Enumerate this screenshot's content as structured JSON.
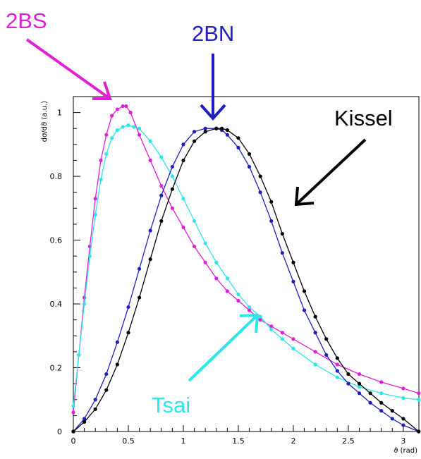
{
  "chart_data": {
    "type": "line",
    "title": "",
    "xlabel": "ϑ (rad)",
    "ylabel": "dσ/dϑ (a.u.)",
    "xlim": [
      0,
      3.1416
    ],
    "ylim": [
      0,
      1.05
    ],
    "xticks": [
      "0",
      "0.5",
      "1",
      "1.5",
      "2",
      "2.5",
      "3"
    ],
    "xtick_values": [
      0,
      0.5,
      1,
      1.5,
      2,
      2.5,
      3
    ],
    "yticks": [
      "0",
      "0.2",
      "0.4",
      "0.6",
      "0.8",
      "1"
    ],
    "ytick_values": [
      0,
      0.2,
      0.4,
      0.6,
      0.8,
      1
    ],
    "grid": false,
    "legend": "none",
    "series": [
      {
        "name": "2BS",
        "color": "#e020d8",
        "x": [
          0.0,
          0.05,
          0.1,
          0.15,
          0.2,
          0.25,
          0.3,
          0.35,
          0.4,
          0.45,
          0.48,
          0.52,
          0.6,
          0.7,
          0.8,
          0.9,
          1.0,
          1.1,
          1.2,
          1.3,
          1.4,
          1.5,
          1.6,
          1.7,
          1.8,
          1.9,
          2.0,
          2.2,
          2.4,
          2.6,
          2.8,
          3.0,
          3.14
        ],
        "y": [
          0.06,
          0.24,
          0.42,
          0.58,
          0.73,
          0.85,
          0.93,
          0.99,
          1.01,
          1.02,
          1.02,
          1.0,
          0.93,
          0.85,
          0.77,
          0.7,
          0.64,
          0.58,
          0.53,
          0.48,
          0.44,
          0.41,
          0.38,
          0.35,
          0.33,
          0.31,
          0.29,
          0.25,
          0.21,
          0.18,
          0.155,
          0.135,
          0.12
        ]
      },
      {
        "name": "Tsai",
        "color": "#2ee6ea",
        "x": [
          0.0,
          0.05,
          0.1,
          0.15,
          0.2,
          0.25,
          0.3,
          0.35,
          0.4,
          0.45,
          0.5,
          0.55,
          0.6,
          0.7,
          0.8,
          0.9,
          1.0,
          1.1,
          1.2,
          1.3,
          1.4,
          1.5,
          1.6,
          1.7,
          1.8,
          1.9,
          2.0,
          2.2,
          2.4,
          2.6,
          2.8,
          3.0,
          3.14
        ],
        "y": [
          0.08,
          0.24,
          0.4,
          0.55,
          0.68,
          0.79,
          0.87,
          0.92,
          0.945,
          0.955,
          0.96,
          0.955,
          0.95,
          0.91,
          0.86,
          0.8,
          0.73,
          0.66,
          0.59,
          0.53,
          0.48,
          0.43,
          0.39,
          0.36,
          0.32,
          0.29,
          0.26,
          0.21,
          0.17,
          0.14,
          0.12,
          0.105,
          0.1
        ]
      },
      {
        "name": "2BN",
        "color": "#1f1fbf",
        "x": [
          0.0,
          0.1,
          0.2,
          0.3,
          0.4,
          0.5,
          0.6,
          0.7,
          0.8,
          0.9,
          1.0,
          1.1,
          1.2,
          1.3,
          1.35,
          1.4,
          1.5,
          1.6,
          1.7,
          1.8,
          1.9,
          2.0,
          2.1,
          2.2,
          2.3,
          2.4,
          2.5,
          2.6,
          2.7,
          2.8,
          2.9,
          3.0,
          3.14
        ],
        "y": [
          0.0,
          0.04,
          0.1,
          0.18,
          0.28,
          0.39,
          0.51,
          0.63,
          0.74,
          0.83,
          0.9,
          0.94,
          0.95,
          0.95,
          0.945,
          0.93,
          0.89,
          0.83,
          0.75,
          0.66,
          0.56,
          0.47,
          0.38,
          0.31,
          0.24,
          0.19,
          0.15,
          0.12,
          0.09,
          0.065,
          0.04,
          0.02,
          0.0
        ]
      },
      {
        "name": "Kissel",
        "color": "#000000",
        "x": [
          0.0,
          0.1,
          0.2,
          0.3,
          0.4,
          0.5,
          0.6,
          0.7,
          0.8,
          0.9,
          1.0,
          1.1,
          1.2,
          1.3,
          1.35,
          1.4,
          1.5,
          1.6,
          1.7,
          1.8,
          1.9,
          2.0,
          2.1,
          2.2,
          2.3,
          2.4,
          2.5,
          2.6,
          2.7,
          2.8,
          2.9,
          3.0,
          3.14
        ],
        "y": [
          0.0,
          0.03,
          0.07,
          0.13,
          0.21,
          0.31,
          0.42,
          0.54,
          0.66,
          0.76,
          0.85,
          0.91,
          0.94,
          0.95,
          0.95,
          0.945,
          0.92,
          0.87,
          0.8,
          0.72,
          0.62,
          0.53,
          0.44,
          0.36,
          0.29,
          0.23,
          0.18,
          0.15,
          0.12,
          0.09,
          0.065,
          0.04,
          0.0
        ]
      }
    ],
    "annotations": [
      {
        "text": "2BS",
        "color": "#e020d8"
      },
      {
        "text": "2BN",
        "color": "#1f1fbf"
      },
      {
        "text": "Kissel",
        "color": "#000000"
      },
      {
        "text": "Tsai",
        "color": "#2ee6ea"
      }
    ]
  }
}
